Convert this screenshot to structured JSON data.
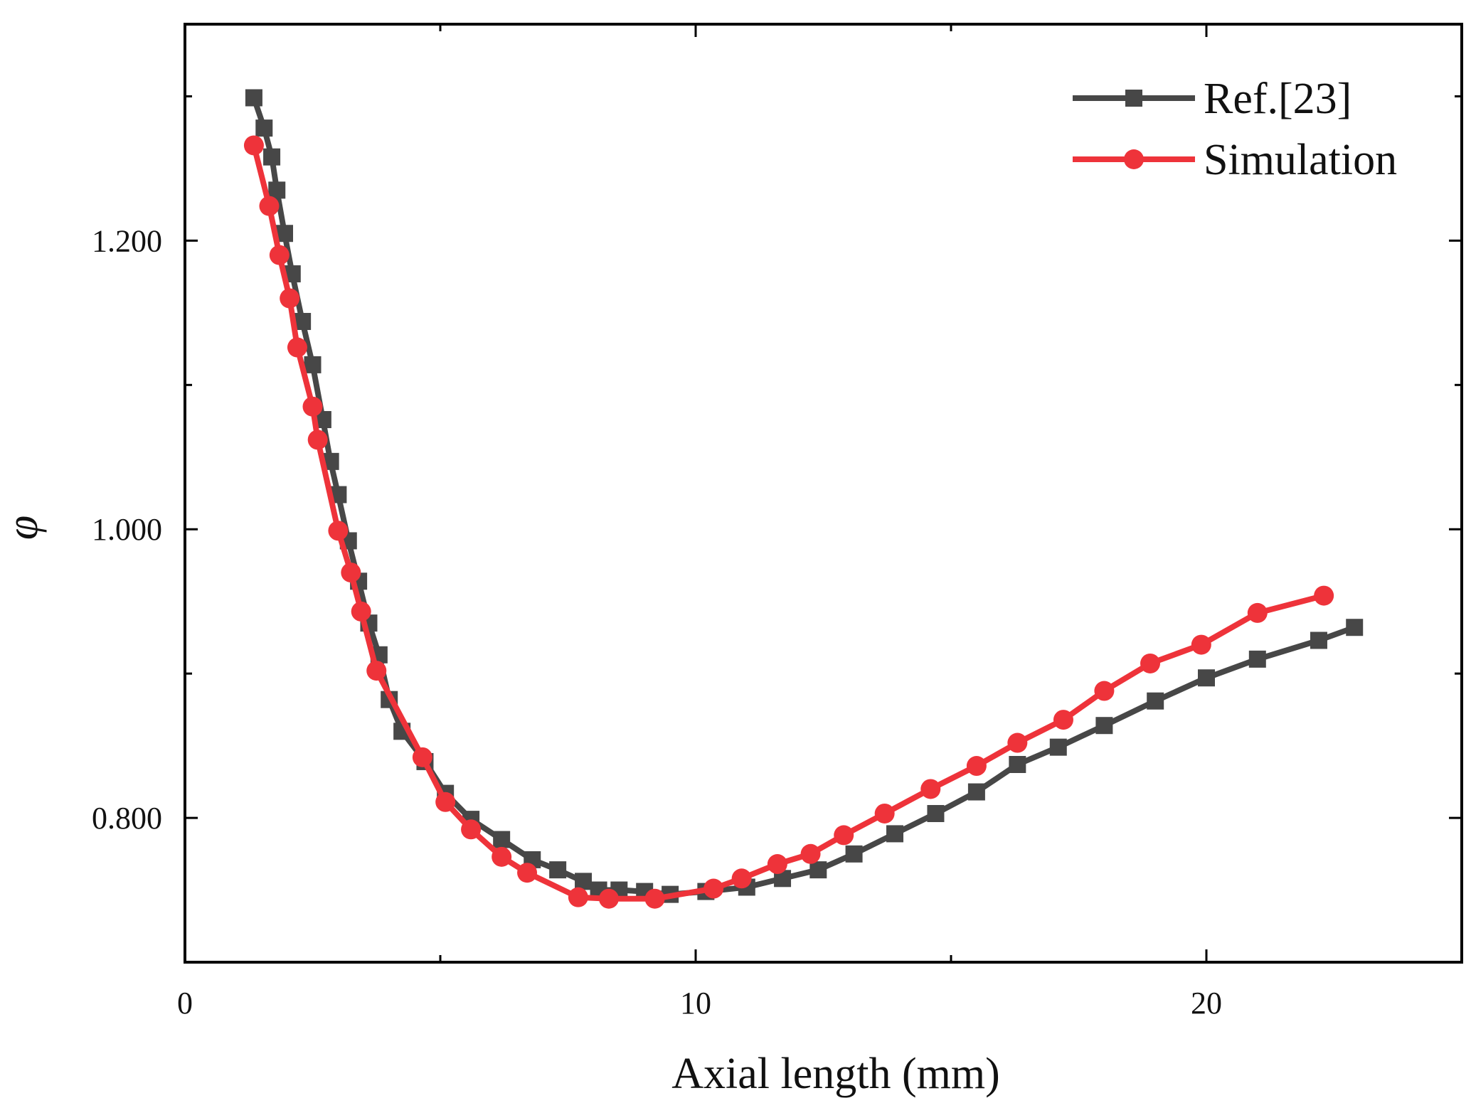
{
  "chart_data": {
    "type": "line",
    "title": "",
    "xlabel": "Axial length (mm)",
    "ylabel": "φ",
    "xlim": [
      0,
      25
    ],
    "ylim": [
      0.7,
      1.35
    ],
    "x_ticks": [
      0,
      10,
      20
    ],
    "x_tick_labels": [
      "0",
      "10",
      "20"
    ],
    "y_ticks": [
      0.8,
      1.0,
      1.2
    ],
    "y_tick_labels": [
      "0.800",
      "1.000",
      "1.200"
    ],
    "legend": {
      "placement": "top-right"
    },
    "series": [
      {
        "name": "Ref.[23]",
        "color": "#474747",
        "marker": "square",
        "x": [
          1.35,
          1.55,
          1.7,
          1.8,
          1.95,
          2.1,
          2.3,
          2.5,
          2.7,
          2.85,
          3.0,
          3.2,
          3.4,
          3.6,
          3.8,
          4.0,
          4.25,
          4.7,
          5.1,
          5.6,
          6.2,
          6.8,
          7.3,
          7.8,
          8.1,
          8.5,
          9.0,
          9.5,
          10.2,
          11.0,
          11.7,
          12.4,
          13.1,
          13.9,
          14.7,
          15.5,
          16.3,
          17.1,
          18.0,
          19.0,
          20.0,
          21.0,
          22.2,
          22.9
        ],
        "y": [
          1.299,
          1.278,
          1.258,
          1.235,
          1.205,
          1.177,
          1.144,
          1.114,
          1.076,
          1.047,
          1.024,
          0.992,
          0.964,
          0.935,
          0.913,
          0.882,
          0.86,
          0.839,
          0.817,
          0.799,
          0.785,
          0.771,
          0.764,
          0.756,
          0.75,
          0.75,
          0.749,
          0.747,
          0.749,
          0.752,
          0.758,
          0.764,
          0.775,
          0.789,
          0.803,
          0.818,
          0.837,
          0.849,
          0.864,
          0.881,
          0.897,
          0.91,
          0.923,
          0.932
        ]
      },
      {
        "name": "Simulation",
        "color": "#ee333a",
        "marker": "circle",
        "x": [
          1.35,
          1.65,
          1.85,
          2.05,
          2.2,
          2.5,
          2.6,
          3.0,
          3.25,
          3.45,
          3.75,
          4.65,
          5.1,
          5.6,
          6.2,
          6.7,
          7.7,
          8.3,
          9.2,
          10.35,
          10.9,
          11.6,
          12.25,
          12.9,
          13.7,
          14.6,
          15.5,
          16.3,
          17.2,
          18.0,
          18.9,
          19.9,
          21.0,
          22.3
        ],
        "y": [
          1.266,
          1.224,
          1.19,
          1.16,
          1.126,
          1.085,
          1.062,
          0.999,
          0.97,
          0.943,
          0.902,
          0.842,
          0.811,
          0.792,
          0.773,
          0.762,
          0.745,
          0.744,
          0.744,
          0.751,
          0.758,
          0.768,
          0.775,
          0.788,
          0.803,
          0.82,
          0.836,
          0.852,
          0.868,
          0.888,
          0.907,
          0.92,
          0.942,
          0.954
        ]
      }
    ]
  }
}
